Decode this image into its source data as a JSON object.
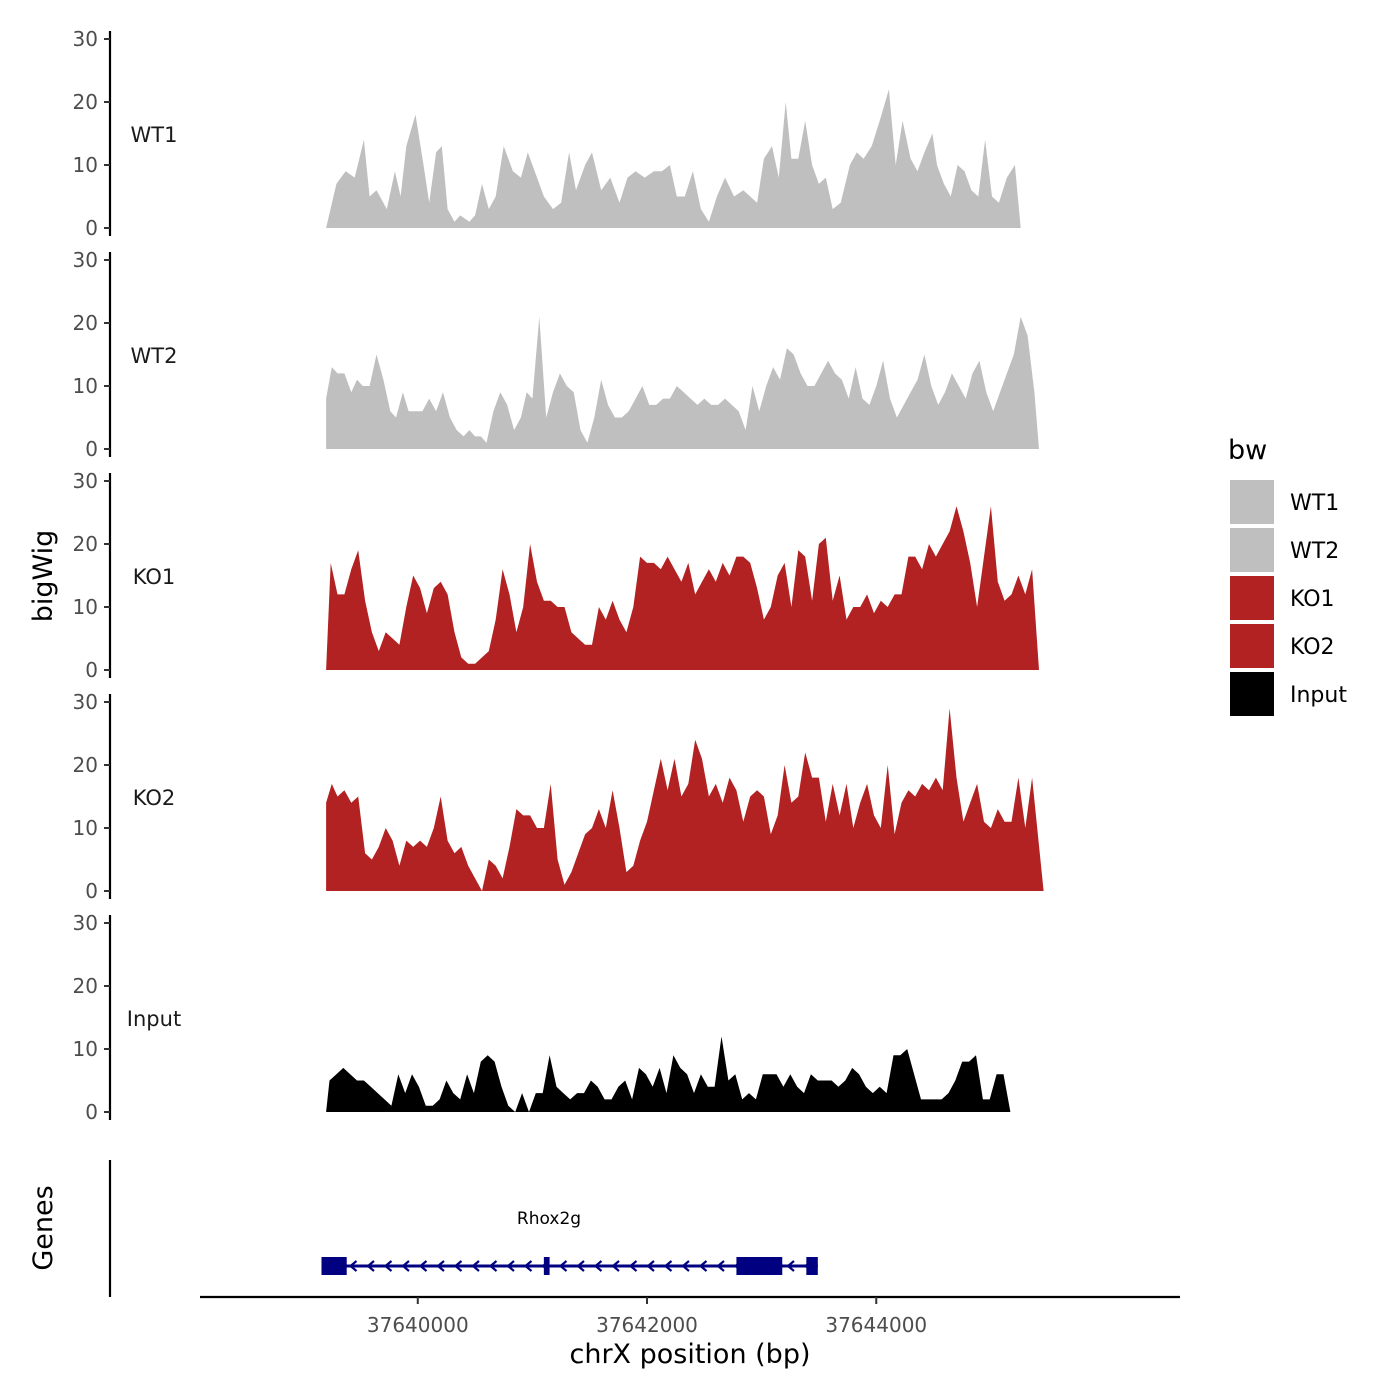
{
  "chart_data": {
    "type": "area",
    "ylabel": "bigWig",
    "xlabel": "chrX position (bp)",
    "ylim": [
      0,
      30
    ],
    "yticks": [
      0,
      10,
      20,
      30
    ],
    "xlim": [
      37638100,
      37646650
    ],
    "xticks": [
      37640000,
      37642000,
      37644000
    ],
    "xtick_labels": [
      "37640000",
      "37642000",
      "37644000"
    ],
    "legend": {
      "title": "bw",
      "position": "right",
      "entries": [
        {
          "label": "WT1",
          "color": "#bfbfbf"
        },
        {
          "label": "WT2",
          "color": "#bfbfbf"
        },
        {
          "label": "KO1",
          "color": "#b22222"
        },
        {
          "label": "KO2",
          "color": "#b22222"
        },
        {
          "label": "Input",
          "color": "#000000"
        }
      ]
    },
    "series": [
      {
        "name": "WT1",
        "color": "#bfbfbf",
        "x": [
          37639200,
          37639290,
          37639370,
          37639450,
          37639530,
          37639580,
          37639640,
          37639730,
          37639800,
          37639850,
          37639900,
          37639980,
          37640050,
          37640100,
          37640160,
          37640210,
          37640260,
          37640320,
          37640370,
          37640450,
          37640500,
          37640560,
          37640620,
          37640680,
          37640750,
          37640830,
          37640900,
          37640960,
          37641020,
          37641100,
          37641180,
          37641250,
          37641320,
          37641380,
          37641460,
          37641520,
          37641600,
          37641680,
          37641760,
          37641830,
          37641900,
          37641980,
          37642060,
          37642130,
          37642200,
          37642260,
          37642330,
          37642400,
          37642470,
          37642540,
          37642610,
          37642680,
          37642760,
          37642840,
          37642900,
          37642960,
          37643020,
          37643090,
          37643150,
          37643210,
          37643260,
          37643320,
          37643380,
          37643440,
          37643500,
          37643560,
          37643620,
          37643690,
          37643770,
          37643830,
          37643890,
          37643960,
          37644030,
          37644110,
          37644170,
          37644230,
          37644300,
          37644360,
          37644420,
          37644490,
          37644530,
          37644590,
          37644650,
          37644710,
          37644770,
          37644830,
          37644890,
          37644950,
          37645010,
          37645070,
          37645140,
          37645210,
          37645260,
          37645320,
          37645420
        ],
        "y": [
          0,
          7,
          9,
          8,
          14,
          5,
          6,
          3,
          9,
          5,
          13,
          18,
          10,
          4,
          12,
          13,
          3,
          1,
          2,
          1,
          2,
          7,
          3,
          5,
          13,
          9,
          8,
          12,
          9,
          5,
          3,
          4,
          12,
          6,
          10,
          12,
          6,
          8,
          4,
          8,
          9,
          8,
          9,
          9,
          10,
          5,
          5,
          9,
          3,
          1,
          5,
          8,
          5,
          6,
          5,
          4,
          11,
          13,
          8,
          20,
          11,
          11,
          17,
          10,
          7,
          8,
          3,
          4,
          10,
          12,
          11,
          13,
          17,
          22,
          10,
          17,
          11,
          9,
          12,
          15,
          10,
          7,
          5,
          10,
          9,
          6,
          5,
          14,
          5,
          4,
          8,
          10,
          0,
          0,
          0
        ],
        "offsetMode": false
      },
      {
        "name": "WT2",
        "color": "#bfbfbf",
        "x": [
          37639200,
          37639250,
          37639300,
          37639360,
          37639420,
          37639470,
          37639520,
          37639580,
          37639640,
          37639700,
          37639760,
          37639810,
          37639870,
          37639920,
          37639980,
          37640040,
          37640100,
          37640160,
          37640220,
          37640280,
          37640340,
          37640400,
          37640450,
          37640500,
          37640550,
          37640600,
          37640660,
          37640720,
          37640780,
          37640840,
          37640900,
          37640950,
          37641000,
          37641060,
          37641120,
          37641180,
          37641240,
          37641300,
          37641360,
          37641420,
          37641480,
          37641540,
          37641600,
          37641660,
          37641720,
          37641780,
          37641840,
          37641900,
          37641960,
          37642020,
          37642080,
          37642140,
          37642200,
          37642260,
          37642320,
          37642380,
          37642440,
          37642500,
          37642560,
          37642620,
          37642680,
          37642740,
          37642800,
          37642860,
          37642920,
          37642980,
          37643040,
          37643100,
          37643160,
          37643220,
          37643280,
          37643340,
          37643400,
          37643460,
          37643520,
          37643580,
          37643640,
          37643700,
          37643760,
          37643820,
          37643880,
          37643940,
          37644000,
          37644060,
          37644120,
          37644180,
          37644240,
          37644300,
          37644360,
          37644420,
          37644480,
          37644540,
          37644600,
          37644660,
          37644720,
          37644780,
          37644840,
          37644900,
          37644960,
          37645020,
          37645080,
          37645140,
          37645200,
          37645260,
          37645320,
          37645380,
          37645420
        ],
        "y": [
          8,
          13,
          12,
          12,
          9,
          11,
          10,
          10,
          15,
          11,
          6,
          5,
          9,
          6,
          6,
          6,
          8,
          6,
          9,
          5,
          3,
          2,
          3,
          2,
          2,
          1,
          6,
          9,
          7,
          3,
          5,
          9,
          8,
          21,
          5,
          9,
          12,
          10,
          9,
          3,
          1,
          5,
          11,
          7,
          5,
          5,
          6,
          8,
          10,
          7,
          7,
          8,
          8,
          10,
          9,
          8,
          7,
          8,
          7,
          7,
          8,
          7,
          6,
          3,
          10,
          6,
          10,
          13,
          11,
          16,
          15,
          12,
          10,
          10,
          12,
          14,
          12,
          11,
          8,
          13,
          8,
          7,
          10,
          14,
          8,
          5,
          7,
          9,
          11,
          15,
          10,
          7,
          9,
          12,
          10,
          8,
          12,
          14,
          9,
          6,
          9,
          12,
          15,
          21,
          18,
          9,
          0
        ],
        "offsetMode": false
      },
      {
        "name": "KO1",
        "color": "#b22222",
        "x": [
          37639200,
          37639240,
          37639300,
          37639360,
          37639420,
          37639480,
          37639540,
          37639600,
          37639660,
          37639720,
          37639780,
          37639840,
          37639900,
          37639960,
          37640020,
          37640080,
          37640140,
          37640200,
          37640260,
          37640320,
          37640380,
          37640440,
          37640500,
          37640560,
          37640620,
          37640680,
          37640740,
          37640800,
          37640860,
          37640920,
          37640980,
          37641040,
          37641100,
          37641160,
          37641220,
          37641280,
          37641340,
          37641400,
          37641460,
          37641520,
          37641580,
          37641640,
          37641700,
          37641760,
          37641820,
          37641880,
          37641940,
          37642000,
          37642060,
          37642120,
          37642180,
          37642240,
          37642300,
          37642360,
          37642420,
          37642480,
          37642540,
          37642600,
          37642660,
          37642720,
          37642780,
          37642840,
          37642900,
          37642960,
          37643020,
          37643080,
          37643140,
          37643200,
          37643260,
          37643320,
          37643380,
          37643440,
          37643500,
          37643560,
          37643620,
          37643680,
          37643740,
          37643800,
          37643860,
          37643920,
          37643980,
          37644040,
          37644100,
          37644160,
          37644220,
          37644280,
          37644340,
          37644400,
          37644460,
          37644520,
          37644580,
          37644640,
          37644700,
          37644760,
          37644820,
          37644880,
          37644940,
          37645000,
          37645060,
          37645120,
          37645180,
          37645240,
          37645300,
          37645360,
          37645420
        ],
        "y": [
          0,
          17,
          12,
          12,
          16,
          19,
          11,
          6,
          3,
          6,
          5,
          4,
          10,
          15,
          13,
          9,
          13,
          14,
          12,
          6,
          2,
          1,
          1,
          2,
          3,
          8,
          16,
          12,
          6,
          10,
          20,
          14,
          11,
          11,
          10,
          10,
          6,
          5,
          4,
          4,
          10,
          8,
          11,
          8,
          6,
          10,
          18,
          17,
          17,
          16,
          18,
          16,
          14,
          17,
          12,
          14,
          16,
          14,
          17,
          15,
          18,
          18,
          17,
          13,
          8,
          10,
          15,
          17,
          10,
          19,
          18,
          11,
          20,
          21,
          11,
          15,
          8,
          10,
          10,
          12,
          9,
          11,
          10,
          12,
          12,
          18,
          18,
          16,
          20,
          18,
          20,
          22,
          26,
          22,
          17,
          10,
          18,
          26,
          14,
          11,
          12,
          15,
          12,
          16,
          0
        ],
        "offsetMode": false
      },
      {
        "name": "KO2",
        "color": "#b22222",
        "x": [
          37639200,
          37639250,
          37639300,
          37639360,
          37639420,
          37639480,
          37639540,
          37639600,
          37639660,
          37639720,
          37639780,
          37639840,
          37639900,
          37639960,
          37640020,
          37640080,
          37640140,
          37640200,
          37640260,
          37640320,
          37640380,
          37640440,
          37640500,
          37640560,
          37640620,
          37640680,
          37640740,
          37640800,
          37640860,
          37640920,
          37640980,
          37641040,
          37641100,
          37641160,
          37641220,
          37641280,
          37641340,
          37641400,
          37641460,
          37641520,
          37641580,
          37641640,
          37641700,
          37641760,
          37641820,
          37641880,
          37641940,
          37642000,
          37642060,
          37642120,
          37642180,
          37642240,
          37642300,
          37642360,
          37642420,
          37642480,
          37642540,
          37642600,
          37642660,
          37642720,
          37642780,
          37642840,
          37642900,
          37642960,
          37643020,
          37643080,
          37643140,
          37643200,
          37643260,
          37643320,
          37643380,
          37643440,
          37643500,
          37643560,
          37643620,
          37643680,
          37643740,
          37643800,
          37643860,
          37643920,
          37643980,
          37644040,
          37644100,
          37644160,
          37644220,
          37644280,
          37644340,
          37644400,
          37644460,
          37644520,
          37644580,
          37644640,
          37644700,
          37644760,
          37644820,
          37644880,
          37644940,
          37645000,
          37645060,
          37645120,
          37645180,
          37645240,
          37645300,
          37645360,
          37645460
        ],
        "y": [
          14,
          17,
          15,
          16,
          14,
          15,
          6,
          5,
          7,
          10,
          8,
          4,
          8,
          7,
          8,
          7,
          10,
          15,
          8,
          6,
          7,
          4,
          2,
          0,
          5,
          4,
          2,
          7,
          13,
          12,
          12,
          10,
          10,
          17,
          5,
          1,
          3,
          6,
          9,
          10,
          13,
          10,
          16,
          10,
          3,
          4,
          8,
          11,
          16,
          21,
          16,
          21,
          15,
          17,
          24,
          21,
          15,
          17,
          14,
          18,
          16,
          11,
          15,
          16,
          15,
          9,
          12,
          20,
          14,
          15,
          22,
          18,
          18,
          11,
          17,
          12,
          17,
          10,
          14,
          17,
          12,
          10,
          20,
          9,
          14,
          16,
          15,
          17,
          16,
          18,
          16,
          29,
          18,
          11,
          14,
          17,
          11,
          10,
          13,
          11,
          11,
          18,
          10,
          18,
          0
        ],
        "offsetMode": false
      },
      {
        "name": "Input",
        "color": "#000000",
        "x": [
          37639200,
          37639230,
          37639290,
          37639350,
          37639410,
          37639470,
          37639530,
          37639590,
          37639650,
          37639710,
          37639770,
          37639830,
          37639890,
          37639950,
          37640010,
          37640070,
          37640130,
          37640190,
          37640250,
          37640310,
          37640370,
          37640430,
          37640490,
          37640550,
          37640610,
          37640670,
          37640730,
          37640790,
          37640850,
          37640910,
          37640970,
          37641030,
          37641090,
          37641150,
          37641210,
          37641270,
          37641330,
          37641390,
          37641450,
          37641510,
          37641570,
          37641630,
          37641690,
          37641750,
          37641810,
          37641870,
          37641930,
          37641990,
          37642050,
          37642110,
          37642170,
          37642230,
          37642290,
          37642350,
          37642410,
          37642470,
          37642530,
          37642590,
          37642650,
          37642710,
          37642770,
          37642830,
          37642890,
          37642950,
          37643010,
          37643070,
          37643130,
          37643190,
          37643250,
          37643310,
          37643370,
          37643430,
          37643490,
          37643550,
          37643610,
          37643670,
          37643730,
          37643790,
          37643850,
          37643910,
          37643970,
          37644030,
          37644090,
          37644150,
          37644210,
          37644270,
          37644330,
          37644390,
          37644450,
          37644510,
          37644570,
          37644630,
          37644690,
          37644750,
          37644810,
          37644870,
          37644930,
          37644990,
          37645050,
          37645110,
          37645170,
          37645230,
          37645290,
          37645350,
          37645420
        ],
        "y": [
          0,
          5,
          6,
          7,
          6,
          5,
          5,
          4,
          3,
          2,
          1,
          6,
          3,
          6,
          4,
          1,
          1,
          2,
          5,
          3,
          2,
          6,
          3,
          8,
          9,
          8,
          4,
          1,
          0,
          3,
          0,
          3,
          3,
          9,
          4,
          3,
          2,
          3,
          3,
          5,
          4,
          2,
          2,
          4,
          5,
          2,
          7,
          6,
          4,
          7,
          3,
          9,
          7,
          6,
          3,
          6,
          4,
          4,
          12,
          5,
          6,
          2,
          3,
          2,
          6,
          6,
          6,
          4,
          6,
          4,
          3,
          6,
          5,
          5,
          5,
          4,
          5,
          7,
          6,
          4,
          3,
          4,
          3,
          9,
          9,
          10,
          6,
          2,
          2,
          2,
          2,
          3,
          5,
          8,
          8,
          9,
          2,
          2,
          6,
          6,
          0,
          0,
          0,
          0,
          0
        ],
        "offsetMode": false
      }
    ],
    "gene_track": {
      "ylabel": "Genes",
      "gene_name": "Rhox2g",
      "strand": "-",
      "start": 37639160,
      "end": 37643490,
      "exons": [
        [
          37639160,
          37639380
        ],
        [
          37641100,
          37641150
        ],
        [
          37642780,
          37643180
        ],
        [
          37643390,
          37643490
        ]
      ],
      "color": "#000080"
    }
  }
}
